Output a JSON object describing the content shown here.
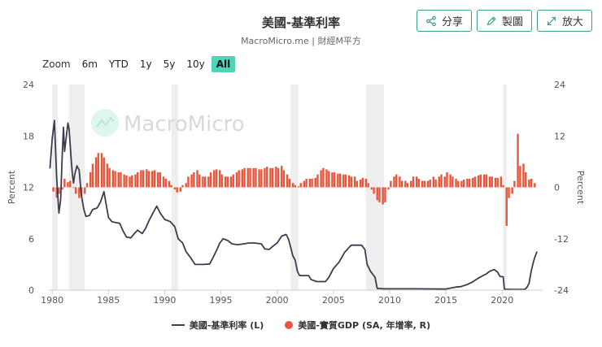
{
  "header": {
    "title": "美國-基準利率",
    "subtitle": "MacroMicro.me | 財經M平方"
  },
  "actions": {
    "share_label": "分享",
    "draw_label": "製圖",
    "enlarge_label": "放大"
  },
  "zoom": {
    "label": "Zoom",
    "options": [
      "6m",
      "YTD",
      "1y",
      "5y",
      "10y",
      "All"
    ],
    "selected": "All"
  },
  "watermark": {
    "text": "MacroMicro"
  },
  "colors": {
    "rate_line": "#3b3c4f",
    "gdp_bar": "#e8553c",
    "recession_band": "#eeeeee",
    "accent": "#3a9f8f"
  },
  "chart_data": {
    "type": "line",
    "title": "美國-基準利率",
    "x_ticks": [
      "1980",
      "1985",
      "1990",
      "1995",
      "2000",
      "2005",
      "2010",
      "2015",
      "2020"
    ],
    "xlim": [
      1979.7,
      2023.6
    ],
    "y_left": {
      "label": "Percent",
      "ticks": [
        "0",
        "6",
        "12",
        "18",
        "24"
      ],
      "lim": [
        0,
        24
      ]
    },
    "y_right": {
      "label": "Percent",
      "ticks": [
        "-24",
        "-12",
        "0",
        "12",
        "24"
      ],
      "lim": [
        -24,
        24
      ]
    },
    "legend_position": "bottom",
    "grid": false,
    "recessions": [
      [
        1980.0,
        1980.5
      ],
      [
        1981.5,
        1982.9
      ],
      [
        1990.6,
        1991.2
      ],
      [
        2001.2,
        2001.9
      ],
      [
        2007.9,
        2009.5
      ],
      [
        2020.1,
        2020.4
      ]
    ],
    "series": [
      {
        "name": "美國-基準利率 (L)",
        "axis": "left",
        "type": "line",
        "points": [
          [
            1979.8,
            14.2
          ],
          [
            1980.0,
            17.6
          ],
          [
            1980.2,
            19.8
          ],
          [
            1980.4,
            13.0
          ],
          [
            1980.6,
            9.0
          ],
          [
            1980.75,
            10.5
          ],
          [
            1980.9,
            16.0
          ],
          [
            1981.0,
            19.0
          ],
          [
            1981.1,
            16.2
          ],
          [
            1981.25,
            17.8
          ],
          [
            1981.4,
            19.5
          ],
          [
            1981.5,
            18.8
          ],
          [
            1981.6,
            17.0
          ],
          [
            1981.7,
            15.0
          ],
          [
            1981.8,
            13.5
          ],
          [
            1981.9,
            12.5
          ],
          [
            1982.0,
            13.5
          ],
          [
            1982.2,
            14.5
          ],
          [
            1982.4,
            14.0
          ],
          [
            1982.6,
            11.0
          ],
          [
            1982.8,
            9.5
          ],
          [
            1983.0,
            8.6
          ],
          [
            1983.3,
            8.7
          ],
          [
            1983.6,
            9.4
          ],
          [
            1984.0,
            9.6
          ],
          [
            1984.3,
            10.3
          ],
          [
            1984.6,
            11.5
          ],
          [
            1984.8,
            10.0
          ],
          [
            1985.0,
            8.5
          ],
          [
            1985.3,
            8.0
          ],
          [
            1985.6,
            7.9
          ],
          [
            1986.0,
            7.8
          ],
          [
            1986.3,
            6.9
          ],
          [
            1986.6,
            6.2
          ],
          [
            1987.0,
            6.1
          ],
          [
            1987.3,
            6.6
          ],
          [
            1987.6,
            7.0
          ],
          [
            1987.8,
            6.8
          ],
          [
            1988.0,
            6.6
          ],
          [
            1988.3,
            7.2
          ],
          [
            1988.6,
            8.1
          ],
          [
            1989.0,
            9.1
          ],
          [
            1989.3,
            9.8
          ],
          [
            1989.6,
            9.0
          ],
          [
            1990.0,
            8.25
          ],
          [
            1990.5,
            8.0
          ],
          [
            1990.9,
            7.4
          ],
          [
            1991.2,
            6.0
          ],
          [
            1991.6,
            5.5
          ],
          [
            1991.9,
            4.5
          ],
          [
            1992.3,
            3.8
          ],
          [
            1992.7,
            3.0
          ],
          [
            1993.5,
            3.0
          ],
          [
            1994.0,
            3.05
          ],
          [
            1994.3,
            3.8
          ],
          [
            1994.6,
            4.6
          ],
          [
            1994.9,
            5.5
          ],
          [
            1995.2,
            6.0
          ],
          [
            1995.6,
            5.8
          ],
          [
            1996.0,
            5.4
          ],
          [
            1996.5,
            5.3
          ],
          [
            1997.0,
            5.4
          ],
          [
            1997.5,
            5.5
          ],
          [
            1998.0,
            5.5
          ],
          [
            1998.6,
            5.4
          ],
          [
            1998.9,
            4.8
          ],
          [
            1999.3,
            4.75
          ],
          [
            1999.6,
            5.1
          ],
          [
            2000.0,
            5.5
          ],
          [
            2000.4,
            6.3
          ],
          [
            2000.8,
            6.5
          ],
          [
            2001.0,
            6.0
          ],
          [
            2001.2,
            5.0
          ],
          [
            2001.4,
            4.0
          ],
          [
            2001.6,
            3.5
          ],
          [
            2001.8,
            2.2
          ],
          [
            2002.0,
            1.7
          ],
          [
            2002.8,
            1.7
          ],
          [
            2003.0,
            1.25
          ],
          [
            2003.5,
            1.0
          ],
          [
            2004.3,
            1.0
          ],
          [
            2004.6,
            1.5
          ],
          [
            2005.0,
            2.5
          ],
          [
            2005.5,
            3.25
          ],
          [
            2006.0,
            4.4
          ],
          [
            2006.4,
            5.0
          ],
          [
            2006.6,
            5.25
          ],
          [
            2007.5,
            5.25
          ],
          [
            2007.8,
            4.75
          ],
          [
            2008.0,
            3.0
          ],
          [
            2008.3,
            2.2
          ],
          [
            2008.7,
            1.5
          ],
          [
            2008.9,
            0.2
          ],
          [
            2009.5,
            0.15
          ],
          [
            2012.0,
            0.15
          ],
          [
            2015.0,
            0.13
          ],
          [
            2015.9,
            0.36
          ],
          [
            2016.3,
            0.4
          ],
          [
            2016.9,
            0.65
          ],
          [
            2017.3,
            0.9
          ],
          [
            2017.6,
            1.15
          ],
          [
            2017.9,
            1.4
          ],
          [
            2018.3,
            1.7
          ],
          [
            2018.6,
            1.9
          ],
          [
            2018.9,
            2.2
          ],
          [
            2019.3,
            2.4
          ],
          [
            2019.6,
            2.1
          ],
          [
            2019.8,
            1.6
          ],
          [
            2020.1,
            1.55
          ],
          [
            2020.2,
            0.1
          ],
          [
            2021.0,
            0.08
          ],
          [
            2022.0,
            0.08
          ],
          [
            2022.2,
            0.3
          ],
          [
            2022.4,
            0.8
          ],
          [
            2022.5,
            1.6
          ],
          [
            2022.6,
            2.3
          ],
          [
            2022.75,
            3.1
          ],
          [
            2022.9,
            3.8
          ],
          [
            2023.1,
            4.5
          ]
        ]
      },
      {
        "name": "美國-實質GDP (SA, 年增率, R)",
        "axis": "right",
        "type": "bar",
        "points": [
          [
            1980.1,
            -1.0
          ],
          [
            1980.4,
            -2.4
          ],
          [
            1980.6,
            -1.5
          ],
          [
            1980.9,
            -0.5
          ],
          [
            1981.1,
            2.0
          ],
          [
            1981.4,
            1.2
          ],
          [
            1981.6,
            1.5
          ],
          [
            1981.9,
            0.0
          ],
          [
            1982.1,
            -1.5
          ],
          [
            1982.4,
            -2.5
          ],
          [
            1982.6,
            -2.0
          ],
          [
            1982.9,
            -1.5
          ],
          [
            1983.1,
            1.0
          ],
          [
            1983.4,
            3.5
          ],
          [
            1983.6,
            5.5
          ],
          [
            1983.9,
            7.0
          ],
          [
            1984.1,
            8.0
          ],
          [
            1984.4,
            8.0
          ],
          [
            1984.6,
            7.0
          ],
          [
            1984.9,
            5.5
          ],
          [
            1985.1,
            4.5
          ],
          [
            1985.4,
            4.0
          ],
          [
            1985.6,
            3.8
          ],
          [
            1985.9,
            3.5
          ],
          [
            1986.1,
            3.5
          ],
          [
            1986.4,
            3.0
          ],
          [
            1986.6,
            2.8
          ],
          [
            1986.9,
            2.5
          ],
          [
            1987.1,
            2.8
          ],
          [
            1987.4,
            3.0
          ],
          [
            1987.6,
            3.5
          ],
          [
            1987.9,
            4.0
          ],
          [
            1988.1,
            4.0
          ],
          [
            1988.4,
            4.2
          ],
          [
            1988.6,
            3.8
          ],
          [
            1988.9,
            3.8
          ],
          [
            1989.1,
            4.0
          ],
          [
            1989.4,
            3.5
          ],
          [
            1989.6,
            3.5
          ],
          [
            1989.9,
            2.5
          ],
          [
            1990.1,
            2.0
          ],
          [
            1990.4,
            1.5
          ],
          [
            1990.6,
            0.5
          ],
          [
            1990.9,
            -0.5
          ],
          [
            1991.1,
            -1.2
          ],
          [
            1991.4,
            -1.0
          ],
          [
            1991.6,
            0.5
          ],
          [
            1991.9,
            1.0
          ],
          [
            1992.1,
            2.5
          ],
          [
            1992.4,
            3.0
          ],
          [
            1992.6,
            3.5
          ],
          [
            1992.9,
            4.0
          ],
          [
            1993.1,
            3.0
          ],
          [
            1993.4,
            2.5
          ],
          [
            1993.6,
            2.5
          ],
          [
            1993.9,
            2.5
          ],
          [
            1994.1,
            3.5
          ],
          [
            1994.4,
            4.0
          ],
          [
            1994.6,
            4.2
          ],
          [
            1994.9,
            4.0
          ],
          [
            1995.1,
            3.0
          ],
          [
            1995.4,
            2.5
          ],
          [
            1995.6,
            2.5
          ],
          [
            1995.9,
            2.5
          ],
          [
            1996.1,
            3.0
          ],
          [
            1996.4,
            3.5
          ],
          [
            1996.6,
            4.0
          ],
          [
            1996.9,
            4.2
          ],
          [
            1997.1,
            4.5
          ],
          [
            1997.4,
            4.5
          ],
          [
            1997.6,
            4.5
          ],
          [
            1997.9,
            4.5
          ],
          [
            1998.1,
            4.5
          ],
          [
            1998.4,
            4.2
          ],
          [
            1998.6,
            4.2
          ],
          [
            1998.9,
            4.5
          ],
          [
            1999.1,
            4.8
          ],
          [
            1999.4,
            4.5
          ],
          [
            1999.6,
            4.5
          ],
          [
            1999.9,
            4.8
          ],
          [
            2000.1,
            4.5
          ],
          [
            2000.4,
            5.0
          ],
          [
            2000.6,
            4.0
          ],
          [
            2000.9,
            3.0
          ],
          [
            2001.1,
            2.0
          ],
          [
            2001.4,
            1.0
          ],
          [
            2001.6,
            0.5
          ],
          [
            2001.9,
            0.2
          ],
          [
            2002.1,
            1.0
          ],
          [
            2002.4,
            1.5
          ],
          [
            2002.6,
            2.0
          ],
          [
            2002.9,
            2.0
          ],
          [
            2003.1,
            2.0
          ],
          [
            2003.4,
            2.2
          ],
          [
            2003.6,
            3.0
          ],
          [
            2003.9,
            4.0
          ],
          [
            2004.1,
            4.5
          ],
          [
            2004.4,
            4.2
          ],
          [
            2004.6,
            3.8
          ],
          [
            2004.9,
            3.5
          ],
          [
            2005.1,
            3.5
          ],
          [
            2005.4,
            3.2
          ],
          [
            2005.6,
            3.2
          ],
          [
            2005.9,
            3.0
          ],
          [
            2006.1,
            3.0
          ],
          [
            2006.4,
            2.8
          ],
          [
            2006.6,
            2.5
          ],
          [
            2006.9,
            2.5
          ],
          [
            2007.1,
            1.5
          ],
          [
            2007.4,
            1.8
          ],
          [
            2007.6,
            2.2
          ],
          [
            2007.9,
            2.0
          ],
          [
            2008.1,
            1.0
          ],
          [
            2008.4,
            -0.5
          ],
          [
            2008.6,
            -1.5
          ],
          [
            2008.9,
            -3.0
          ],
          [
            2009.1,
            -3.5
          ],
          [
            2009.4,
            -4.0
          ],
          [
            2009.6,
            -3.5
          ],
          [
            2009.9,
            -0.5
          ],
          [
            2010.1,
            1.5
          ],
          [
            2010.4,
            2.5
          ],
          [
            2010.6,
            3.0
          ],
          [
            2010.9,
            2.5
          ],
          [
            2011.1,
            1.5
          ],
          [
            2011.4,
            1.5
          ],
          [
            2011.6,
            1.0
          ],
          [
            2011.9,
            1.5
          ],
          [
            2012.1,
            2.5
          ],
          [
            2012.4,
            2.5
          ],
          [
            2012.6,
            2.0
          ],
          [
            2012.9,
            1.5
          ],
          [
            2013.1,
            1.5
          ],
          [
            2013.4,
            1.5
          ],
          [
            2013.6,
            1.8
          ],
          [
            2013.9,
            2.5
          ],
          [
            2014.1,
            1.8
          ],
          [
            2014.4,
            2.5
          ],
          [
            2014.6,
            3.0
          ],
          [
            2014.9,
            2.5
          ],
          [
            2015.1,
            3.5
          ],
          [
            2015.4,
            3.0
          ],
          [
            2015.6,
            2.5
          ],
          [
            2015.9,
            2.0
          ],
          [
            2016.1,
            1.5
          ],
          [
            2016.4,
            1.5
          ],
          [
            2016.6,
            1.8
          ],
          [
            2016.9,
            2.0
          ],
          [
            2017.1,
            2.0
          ],
          [
            2017.4,
            2.2
          ],
          [
            2017.6,
            2.5
          ],
          [
            2017.9,
            2.8
          ],
          [
            2018.1,
            3.0
          ],
          [
            2018.4,
            3.0
          ],
          [
            2018.6,
            3.0
          ],
          [
            2018.9,
            2.5
          ],
          [
            2019.1,
            2.5
          ],
          [
            2019.4,
            2.2
          ],
          [
            2019.6,
            2.2
          ],
          [
            2019.9,
            2.5
          ],
          [
            2020.1,
            0.5
          ],
          [
            2020.4,
            -9.0
          ],
          [
            2020.6,
            -2.5
          ],
          [
            2020.9,
            -1.5
          ],
          [
            2021.1,
            1.5
          ],
          [
            2021.4,
            12.5
          ],
          [
            2021.6,
            5.0
          ],
          [
            2021.9,
            5.5
          ],
          [
            2022.1,
            3.5
          ],
          [
            2022.4,
            1.8
          ],
          [
            2022.6,
            2.0
          ],
          [
            2022.9,
            1.0
          ]
        ]
      }
    ]
  },
  "legend": {
    "rate_label": "美國-基準利率 (L)",
    "gdp_label": "美國-實質GDP (SA, 年增率, R)"
  }
}
